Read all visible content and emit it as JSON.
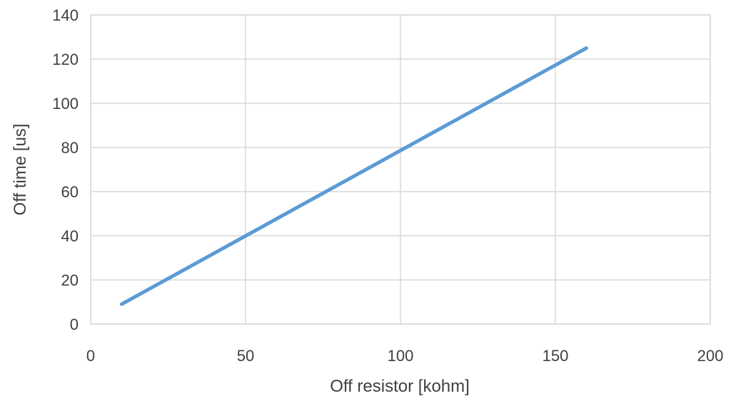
{
  "chart_data": {
    "type": "scatter",
    "title": "",
    "xlabel": "Off resistor [kohm]",
    "ylabel": "Off time [us]",
    "xlim": [
      0,
      200
    ],
    "ylim": [
      0,
      140
    ],
    "x_ticks": [
      0,
      50,
      100,
      150,
      200
    ],
    "y_ticks": [
      0,
      20,
      40,
      60,
      80,
      100,
      120,
      140
    ],
    "grid": true,
    "legend": "none",
    "series": [
      {
        "color": "#5b9bd5",
        "style": "smooth line without markers",
        "x": [
          10,
          160
        ],
        "y": [
          9,
          125
        ]
      }
    ]
  }
}
